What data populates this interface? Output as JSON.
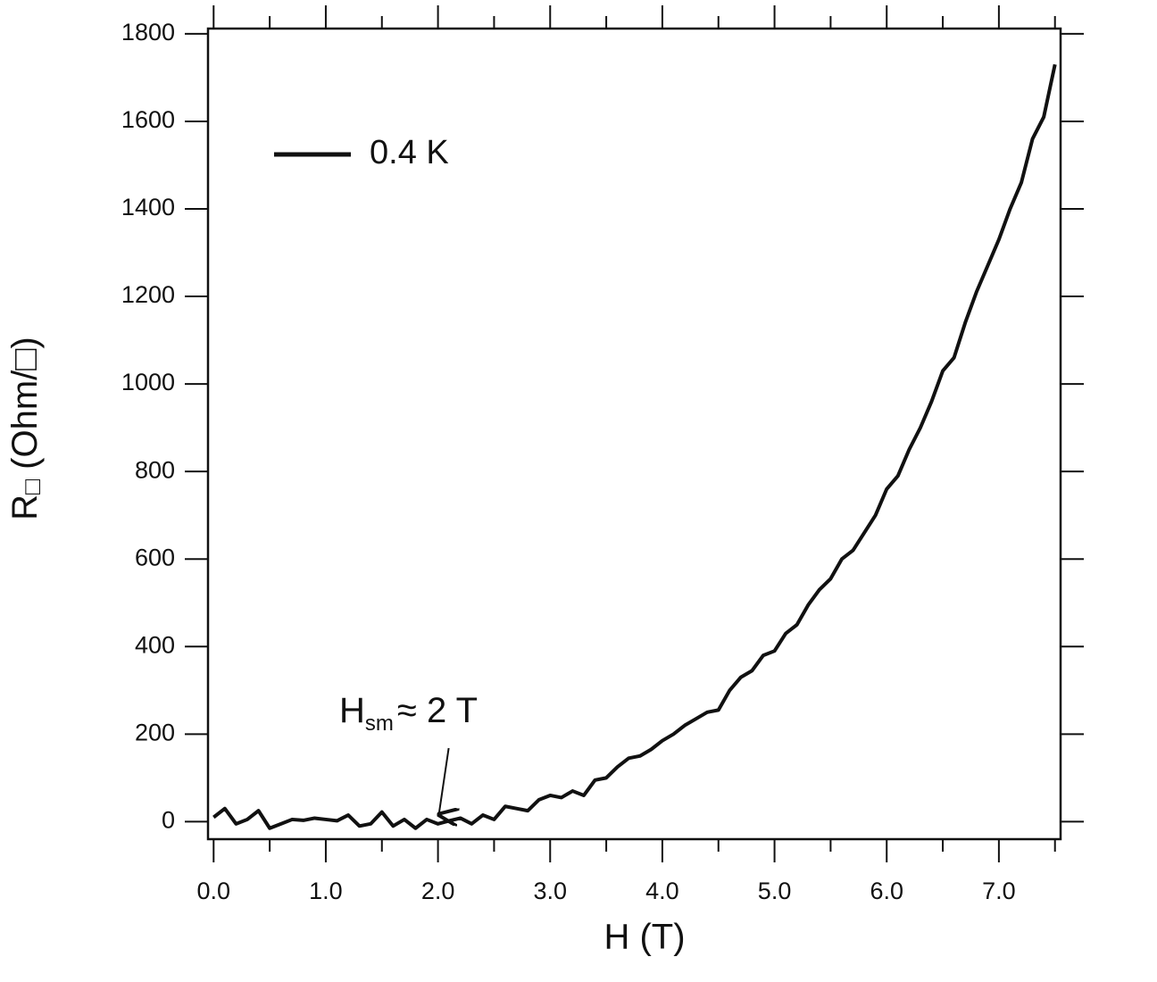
{
  "chart_data": {
    "type": "line",
    "xlabel": "H (T)",
    "ylabel": {
      "main": "R",
      "sub": "□",
      "rest": " (Ohm/□)"
    },
    "annotation": {
      "main": "H",
      "sub": "sm",
      "rest": "≈ 2 T",
      "x": 2.0,
      "y": 0
    },
    "x": [
      0.0,
      0.1,
      0.2,
      0.3,
      0.4,
      0.5,
      0.6,
      0.7,
      0.8,
      0.9,
      1.0,
      1.1,
      1.2,
      1.3,
      1.4,
      1.5,
      1.6,
      1.7,
      1.8,
      1.9,
      2.0,
      2.1,
      2.2,
      2.3,
      2.4,
      2.5,
      2.6,
      2.7,
      2.8,
      2.9,
      3.0,
      3.1,
      3.2,
      3.3,
      3.4,
      3.5,
      3.6,
      3.7,
      3.8,
      3.9,
      4.0,
      4.1,
      4.2,
      4.3,
      4.4,
      4.5,
      4.6,
      4.7,
      4.8,
      4.9,
      5.0,
      5.1,
      5.2,
      5.3,
      5.4,
      5.5,
      5.6,
      5.7,
      5.8,
      5.9,
      6.0,
      6.1,
      6.2,
      6.3,
      6.4,
      6.5,
      6.6,
      6.7,
      6.8,
      6.9,
      7.0,
      7.1,
      7.2,
      7.3,
      7.4,
      7.5
    ],
    "series": [
      {
        "name": "0.4 K",
        "color": "#111111",
        "values": [
          10,
          30,
          -5,
          5,
          25,
          -15,
          -5,
          5,
          3,
          8,
          5,
          2,
          15,
          -10,
          -5,
          22,
          -10,
          5,
          -15,
          5,
          -5,
          2,
          8,
          -5,
          15,
          5,
          35,
          30,
          25,
          50,
          60,
          55,
          70,
          60,
          95,
          100,
          125,
          145,
          150,
          165,
          185,
          200,
          220,
          235,
          250,
          255,
          300,
          330,
          345,
          380,
          390,
          430,
          450,
          495,
          530,
          555,
          600,
          620,
          660,
          700,
          760,
          790,
          850,
          900,
          960,
          1030,
          1060,
          1140,
          1210,
          1270,
          1330,
          1400,
          1460,
          1560,
          1610,
          1730
        ]
      }
    ],
    "xlim": [
      -0.05,
      7.55
    ],
    "ylim": [
      -40,
      1812
    ],
    "xticks": [
      {
        "value": 0,
        "label": "0.0"
      },
      {
        "value": 1,
        "label": "1.0"
      },
      {
        "value": 2,
        "label": "2.0"
      },
      {
        "value": 3,
        "label": "3.0"
      },
      {
        "value": 4,
        "label": "4.0"
      },
      {
        "value": 5,
        "label": "5.0"
      },
      {
        "value": 6,
        "label": "6.0"
      },
      {
        "value": 7,
        "label": "7.0"
      }
    ],
    "xminorticks": [
      0.5,
      1.5,
      2.5,
      3.5,
      4.5,
      5.5,
      6.5,
      7.5
    ],
    "yticks": [
      0,
      200,
      400,
      600,
      800,
      1000,
      1200,
      1400,
      1600,
      1800
    ],
    "grid": false,
    "legend": "upper-left"
  }
}
